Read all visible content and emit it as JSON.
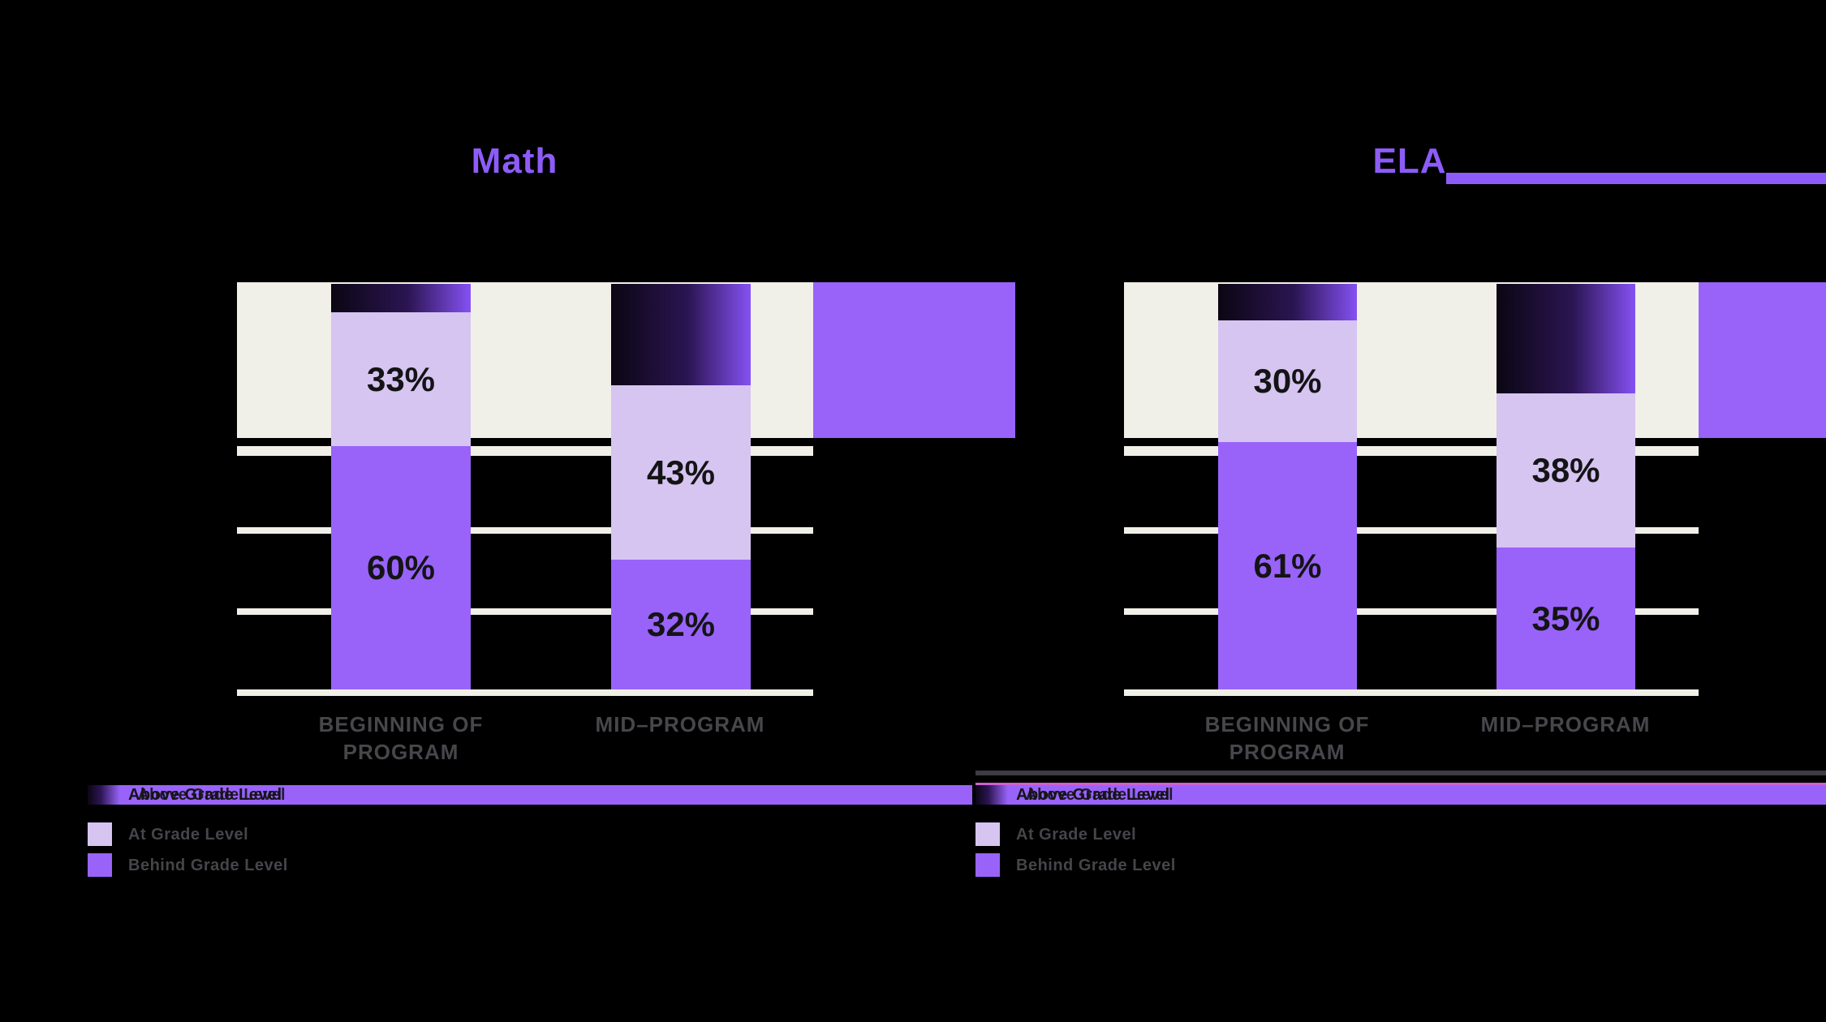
{
  "colors": {
    "background": "#000000",
    "cream_band": "#f1f0e8",
    "purple": "#9963fa",
    "light_purple": "#d6c4f1",
    "gradient_dark": "#0b0613",
    "gradient_mid": "#2b1552",
    "gradient_end": "#8551f3",
    "title_purple": "#8d5cf8",
    "axis_gray": "#47474b",
    "value_label": "#141416",
    "legend_text": "#45454a",
    "legend_pink": "#d05fd3",
    "legend_topline_gray": "#3c3c44"
  },
  "legend": {
    "items": [
      "Above Grade Level",
      "At Grade Level",
      "Behind Grade Level"
    ]
  },
  "chart_data": {
    "type": "bar",
    "stacked": true,
    "unit": "%",
    "ylim": [
      0,
      100
    ],
    "gridlines_pct": [
      0,
      20,
      40,
      60
    ],
    "grid": "on",
    "legend_position": "bottom-left",
    "panels": [
      {
        "title": "Math",
        "categories": [
          "BEGINNING OF\nPROGRAM",
          "MID–PROGRAM"
        ],
        "series": [
          {
            "key": "above",
            "name": "Above Grade Level",
            "values": [
              7,
              25
            ],
            "labels": [
              "",
              ""
            ]
          },
          {
            "key": "at",
            "name": "At Grade Level",
            "values": [
              33,
              43
            ],
            "labels": [
              "33%",
              "43%"
            ]
          },
          {
            "key": "behind",
            "name": "Behind Grade Level",
            "values": [
              60,
              32
            ],
            "labels": [
              "60%",
              "32%"
            ]
          }
        ]
      },
      {
        "title": "ELA",
        "categories": [
          "BEGINNING OF\nPROGRAM",
          "MID–PROGRAM"
        ],
        "series": [
          {
            "key": "above",
            "name": "Above Grade Level",
            "values": [
              9,
              27
            ],
            "labels": [
              "",
              ""
            ]
          },
          {
            "key": "at",
            "name": "At Grade Level",
            "values": [
              30,
              38
            ],
            "labels": [
              "30%",
              "38%"
            ]
          },
          {
            "key": "behind",
            "name": "Behind Grade Level",
            "values": [
              61,
              35
            ],
            "labels": [
              "61%",
              "35%"
            ]
          }
        ]
      }
    ]
  }
}
